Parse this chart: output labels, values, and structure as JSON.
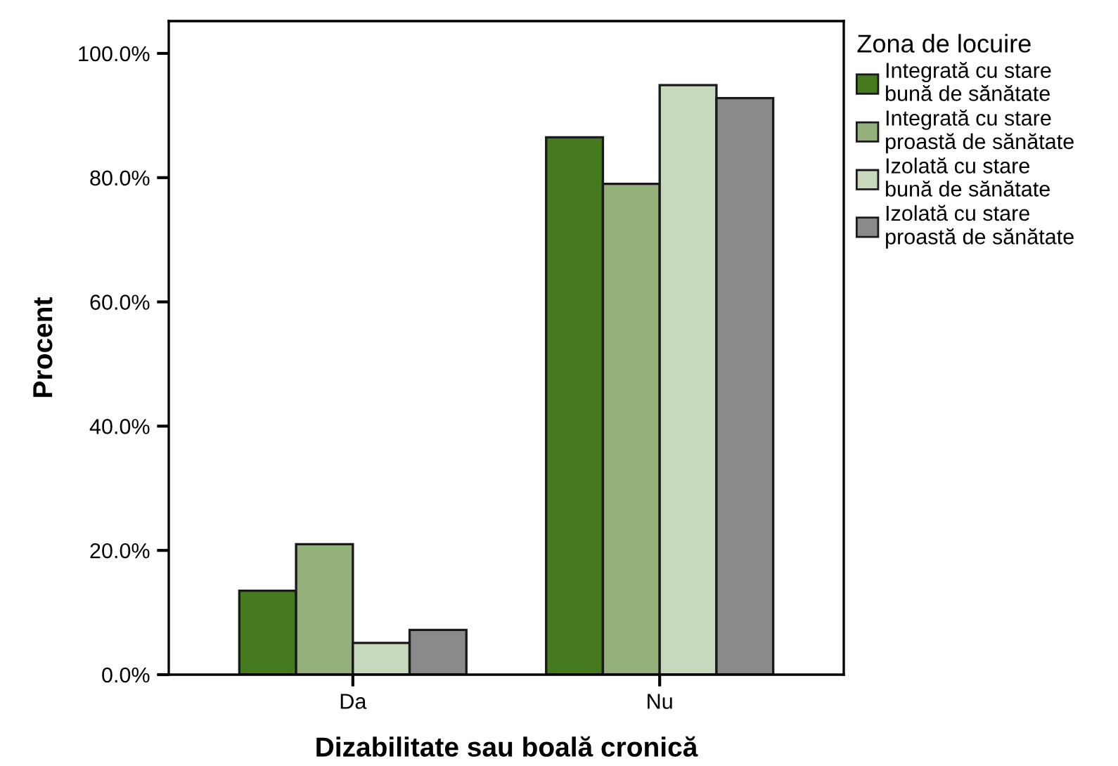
{
  "chart_data": {
    "type": "bar",
    "xlabel": "Dizabilitate sau boală cronică",
    "ylabel": "Procent",
    "legend_title": "Zona de locuire",
    "categories": [
      "Da",
      "Nu"
    ],
    "series": [
      {
        "name": "Integrată cu stare\nbună de sănătate",
        "color": "#457a1f",
        "values": [
          13.5,
          86.5
        ]
      },
      {
        "name": "Integrată cu stare\nproastă de sănătate",
        "color": "#93b07a",
        "values": [
          21.0,
          79.0
        ]
      },
      {
        "name": "Izolată cu stare\nbună de sănătate",
        "color": "#c8d8bc",
        "values": [
          5.1,
          94.9
        ]
      },
      {
        "name": "Izolată cu stare\nproastă de sănătate",
        "color": "#8a8a8c",
        "values": [
          7.2,
          92.8
        ]
      }
    ],
    "ylim": [
      0,
      105.2
    ],
    "yticks": [
      {
        "value": 0,
        "label": "0.0%"
      },
      {
        "value": 20,
        "label": "20.0%"
      },
      {
        "value": 40,
        "label": "40.0%"
      },
      {
        "value": 60,
        "label": "60.0%"
      },
      {
        "value": 80,
        "label": "80.0%"
      },
      {
        "value": 100,
        "label": "100.0%"
      }
    ],
    "grid": false,
    "legend": "right"
  }
}
